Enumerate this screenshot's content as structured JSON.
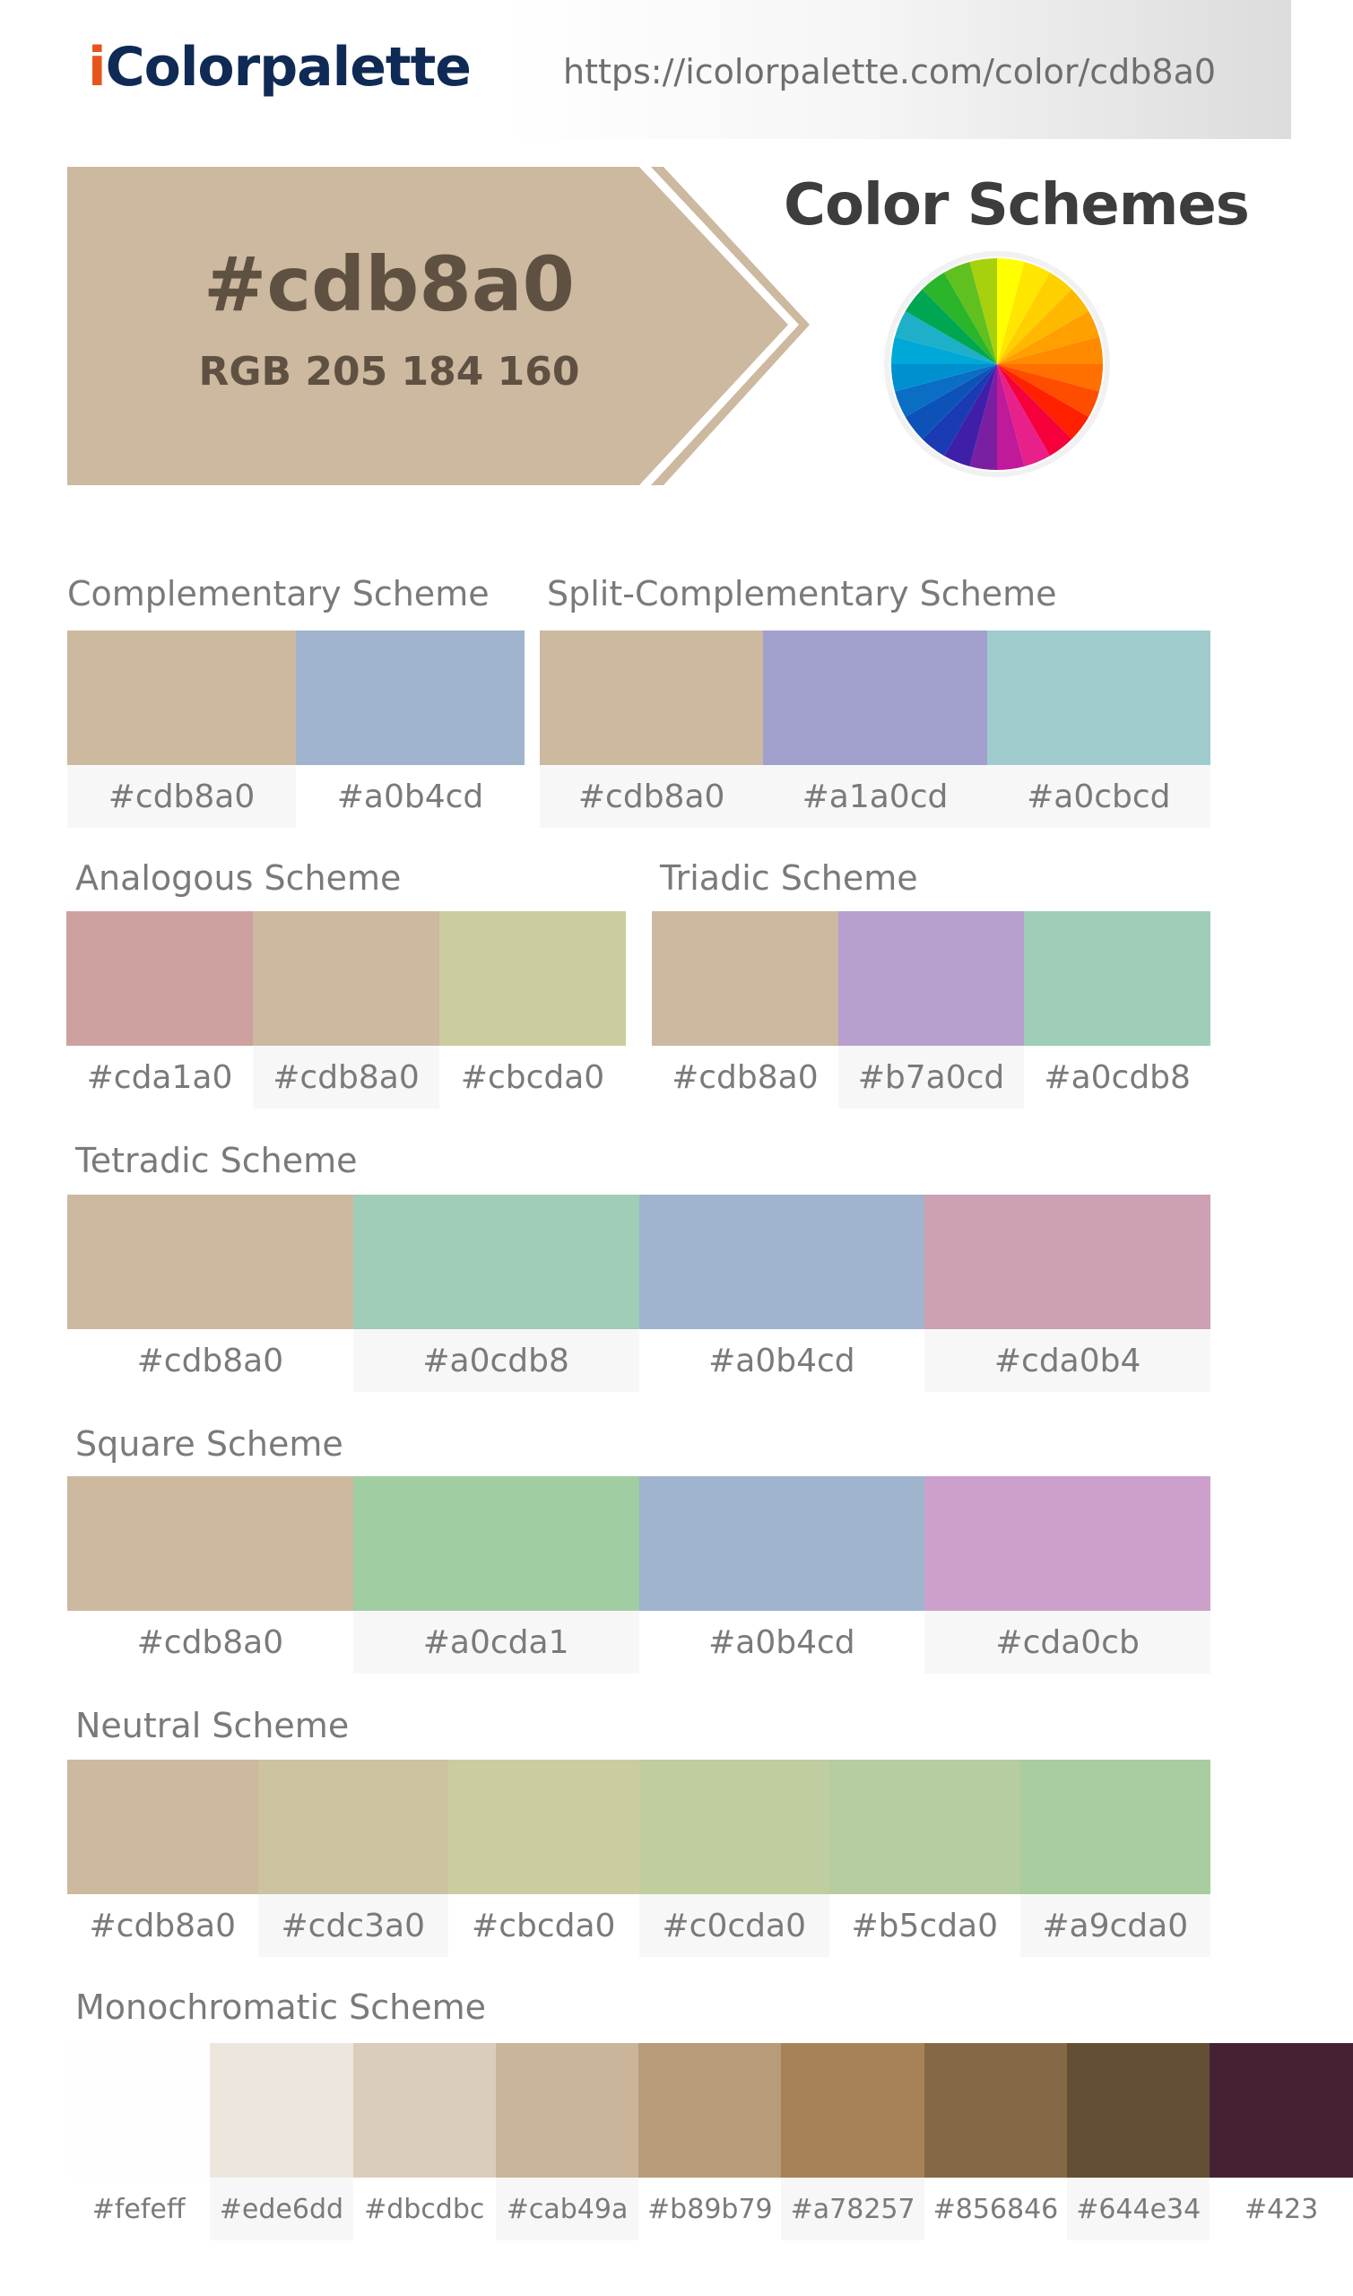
{
  "header": {
    "logo_first": "i",
    "logo_rest": "Colorpalette",
    "url": "https://icolorpalette.com/color/cdb8a0"
  },
  "hero": {
    "hex": "#cdb8a0",
    "rgb": "RGB 205 184 160",
    "color": "#cdb8a0",
    "schemes_title": "Color Schemes",
    "wheel_icon": "color-wheel-icon"
  },
  "complementary": {
    "title": "Complementary Scheme",
    "colors": [
      "#cdb8a0",
      "#a0b4cd"
    ]
  },
  "split": {
    "title": "Split-Complementary Scheme",
    "colors": [
      "#cdb8a0",
      "#a1a0cd",
      "#a0cbcd"
    ]
  },
  "analogous": {
    "title": "Analogous Scheme",
    "colors": [
      "#cda1a0",
      "#cdb8a0",
      "#cbcda0"
    ]
  },
  "triadic": {
    "title": "Triadic Scheme",
    "colors": [
      "#cdb8a0",
      "#b7a0cd",
      "#a0cdb8"
    ]
  },
  "tetradic": {
    "title": "Tetradic Scheme",
    "colors": [
      "#cdb8a0",
      "#a0cdb8",
      "#a0b4cd",
      "#cda0b4"
    ]
  },
  "square": {
    "title": "Square Scheme",
    "colors": [
      "#cdb8a0",
      "#a0cda1",
      "#a0b4cd",
      "#cda0cb"
    ]
  },
  "neutral": {
    "title": "Neutral Scheme",
    "colors": [
      "#cdb8a0",
      "#cdc3a0",
      "#cbcda0",
      "#c0cda0",
      "#b5cda0",
      "#a9cda0"
    ]
  },
  "monochromatic": {
    "title": "Monochromatic Scheme",
    "colors": [
      "#fefeff",
      "#ede6dd",
      "#dbcdbc",
      "#cab49a",
      "#b89b79",
      "#a78257",
      "#856846",
      "#644e34",
      "#423"
    ]
  }
}
